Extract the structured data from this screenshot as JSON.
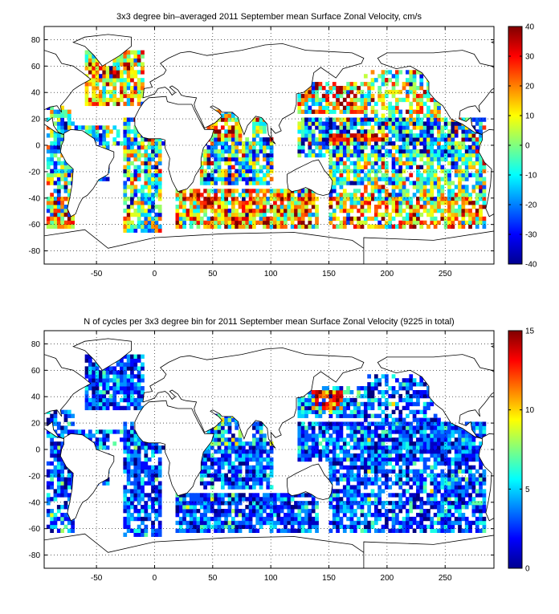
{
  "chart_data": [
    {
      "type": "heatmap",
      "title": "3x3 degree bin–averaged 2011 September mean Surface Zonal Velocity, cm/s",
      "xlabel": "",
      "ylabel": "",
      "xlim": [
        -95,
        292
      ],
      "ylim": [
        -90,
        90
      ],
      "xticks": [
        -50,
        0,
        50,
        100,
        150,
        200,
        250
      ],
      "yticks": [
        -80,
        -60,
        -40,
        -20,
        0,
        20,
        40,
        60,
        80
      ],
      "grid": true,
      "colorbar": {
        "min": -40,
        "max": 40,
        "ticks": [
          -40,
          -30,
          -20,
          -10,
          0,
          10,
          20,
          30,
          40
        ],
        "colormap": "jet",
        "position": "right"
      },
      "bin_size_deg": 3,
      "regions": [
        {
          "lon": [
            -60,
            -10
          ],
          "lat": [
            30,
            70
          ],
          "mean": 10,
          "spread": 16,
          "density": 0.85
        },
        {
          "lon": [
            -25,
            5
          ],
          "lat": [
            -65,
            20
          ],
          "mean": -3,
          "spread": 18,
          "density": 0.75
        },
        {
          "lon": [
            -93,
            -70
          ],
          "lat": [
            -62,
            30
          ],
          "mean": -4,
          "spread": 18,
          "density": 0.6
        },
        {
          "lon": [
            -90,
            -40
          ],
          "lat": [
            -25,
            15
          ],
          "mean": -10,
          "spread": 16,
          "density": 0.7
        },
        {
          "lon": [
            -70,
            15
          ],
          "lat": [
            0,
            15
          ],
          "mean": -12,
          "spread": 18,
          "density": 0.5
        },
        {
          "lon": [
            20,
            140
          ],
          "lat": [
            -62,
            -35
          ],
          "mean": 14,
          "spread": 18,
          "density": 0.85
        },
        {
          "lon": [
            40,
            100
          ],
          "lat": [
            -30,
            5
          ],
          "mean": -8,
          "spread": 20,
          "density": 0.85
        },
        {
          "lon": [
            45,
            75
          ],
          "lat": [
            5,
            25
          ],
          "mean": 10,
          "spread": 22,
          "density": 0.75
        },
        {
          "lon": [
            85,
            95
          ],
          "lat": [
            5,
            20
          ],
          "mean": 6,
          "spread": 18,
          "density": 0.7
        },
        {
          "lon": [
            125,
            180
          ],
          "lat": [
            25,
            48
          ],
          "mean": 10,
          "spread": 20,
          "density": 0.8
        },
        {
          "lon": [
            180,
            245
          ],
          "lat": [
            20,
            55
          ],
          "mean": 2,
          "spread": 16,
          "density": 0.6
        },
        {
          "lon": [
            125,
            285
          ],
          "lat": [
            -8,
            20
          ],
          "mean": -14,
          "spread": 20,
          "density": 0.85
        },
        {
          "lon": [
            150,
            200
          ],
          "lat": [
            3,
            7
          ],
          "mean": 28,
          "spread": 10,
          "density": 0.95
        },
        {
          "lon": [
            150,
            285
          ],
          "lat": [
            -40,
            -8
          ],
          "mean": -3,
          "spread": 16,
          "density": 0.75
        },
        {
          "lon": [
            150,
            285
          ],
          "lat": [
            -62,
            -40
          ],
          "mean": 12,
          "spread": 18,
          "density": 0.75
        },
        {
          "lon": [
            -93,
            -70
          ],
          "lat": [
            -62,
            -40
          ],
          "mean": 14,
          "spread": 16,
          "density": 0.7
        }
      ]
    },
    {
      "type": "heatmap",
      "title": "N of cycles per 3x3 degree bin for 2011 September mean Surface Zonal Velocity (9225 in total)",
      "xlabel": "",
      "ylabel": "",
      "xlim": [
        -95,
        292
      ],
      "ylim": [
        -90,
        90
      ],
      "xticks": [
        -50,
        0,
        50,
        100,
        150,
        200,
        250
      ],
      "yticks": [
        -80,
        -60,
        -40,
        -20,
        0,
        20,
        40,
        60,
        80
      ],
      "grid": true,
      "colorbar": {
        "min": 0,
        "max": 15,
        "ticks": [
          0,
          5,
          10,
          15
        ],
        "colormap": "jet",
        "position": "right"
      },
      "bin_size_deg": 3,
      "total_cycles": 9225,
      "regions": [
        {
          "lon": [
            -60,
            -10
          ],
          "lat": [
            30,
            70
          ],
          "mean": 3,
          "spread": 2,
          "density": 0.85
        },
        {
          "lon": [
            -25,
            5
          ],
          "lat": [
            -65,
            20
          ],
          "mean": 3,
          "spread": 2,
          "density": 0.75
        },
        {
          "lon": [
            -93,
            -70
          ],
          "lat": [
            -62,
            30
          ],
          "mean": 3,
          "spread": 2,
          "density": 0.6
        },
        {
          "lon": [
            -90,
            -40
          ],
          "lat": [
            -25,
            15
          ],
          "mean": 3,
          "spread": 2,
          "density": 0.7
        },
        {
          "lon": [
            -70,
            15
          ],
          "lat": [
            0,
            15
          ],
          "mean": 3,
          "spread": 2,
          "density": 0.5
        },
        {
          "lon": [
            20,
            140
          ],
          "lat": [
            -62,
            -35
          ],
          "mean": 3,
          "spread": 2,
          "density": 0.85
        },
        {
          "lon": [
            40,
            100
          ],
          "lat": [
            -30,
            5
          ],
          "mean": 3,
          "spread": 2,
          "density": 0.85
        },
        {
          "lon": [
            45,
            75
          ],
          "lat": [
            5,
            25
          ],
          "mean": 4,
          "spread": 3,
          "density": 0.75
        },
        {
          "lon": [
            85,
            95
          ],
          "lat": [
            5,
            20
          ],
          "mean": 4,
          "spread": 2,
          "density": 0.7
        },
        {
          "lon": [
            125,
            180
          ],
          "lat": [
            25,
            48
          ],
          "mean": 4,
          "spread": 2,
          "density": 0.8
        },
        {
          "lon": [
            135,
            160
          ],
          "lat": [
            30,
            45
          ],
          "mean": 13,
          "spread": 2,
          "density": 0.9
        },
        {
          "lon": [
            180,
            245
          ],
          "lat": [
            20,
            55
          ],
          "mean": 3,
          "spread": 2,
          "density": 0.6
        },
        {
          "lon": [
            125,
            285
          ],
          "lat": [
            -8,
            20
          ],
          "mean": 3,
          "spread": 2,
          "density": 0.85
        },
        {
          "lon": [
            150,
            285
          ],
          "lat": [
            -40,
            -8
          ],
          "mean": 3,
          "spread": 2,
          "density": 0.75
        },
        {
          "lon": [
            150,
            285
          ],
          "lat": [
            -62,
            -40
          ],
          "mean": 3,
          "spread": 2,
          "density": 0.75
        }
      ]
    }
  ]
}
